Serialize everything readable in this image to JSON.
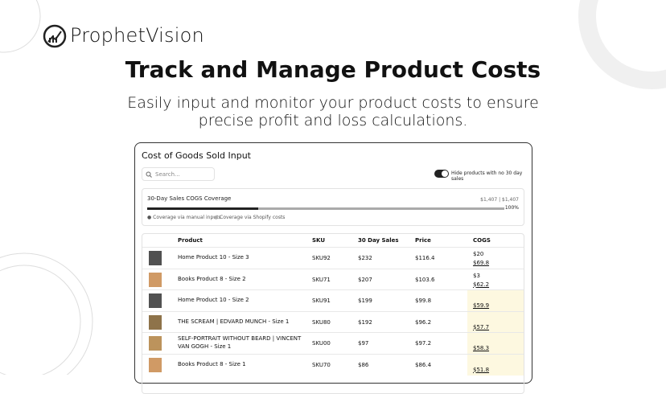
{
  "brand": "ProphetVision",
  "headline": "Track and Manage Product Costs",
  "subheadline": [
    "Easily input and monitor your product costs to ensure",
    "precise profit and loss calculations."
  ],
  "card": {
    "title": "Cost of Goods Sold Input",
    "search_placeholder": "Search...",
    "toggle_label": "Hide products with no 30 day sales",
    "coverage": {
      "title": "30-Day Sales COGS Coverage",
      "amount": "$1,407 | $1,407",
      "percent": "100%",
      "legend": [
        "Coverage via manual inputs",
        "Coverage via Shopify costs"
      ]
    },
    "table": {
      "headers": [
        "Product",
        "SKU",
        "30 Day Sales",
        "Price",
        "COGS"
      ],
      "rows": [
        {
          "product": "Home Product 10 - Size 3",
          "sku": "SKU92",
          "sales": "$232",
          "price": "$116.4",
          "cogs_input": "$20",
          "cogs": "$69.8"
        },
        {
          "product": "Books Product 8 - Size 2",
          "sku": "SKU71",
          "sales": "$207",
          "price": "$103.6",
          "cogs_input": "$3",
          "cogs": "$62.2"
        },
        {
          "product": "Home Product 10 - Size 2",
          "sku": "SKU91",
          "sales": "$199",
          "price": "$99.8",
          "cogs": "$59.9"
        },
        {
          "product": "THE SCREAM | EDVARD MUNCH - Size 1",
          "sku": "SKU80",
          "sales": "$192",
          "price": "$96.2",
          "cogs": "$57.7"
        },
        {
          "product": "SELF-PORTRAIT WITHOUT BEARD | VINCENT VAN GOGH - Size 1",
          "sku": "SKU00",
          "sales": "$97",
          "price": "$97.2",
          "cogs": "$58.3"
        },
        {
          "product": "Books Product 8 - Size 1",
          "sku": "SKU70",
          "sales": "$86",
          "price": "$86.4",
          "cogs": "$51.8"
        }
      ]
    }
  }
}
